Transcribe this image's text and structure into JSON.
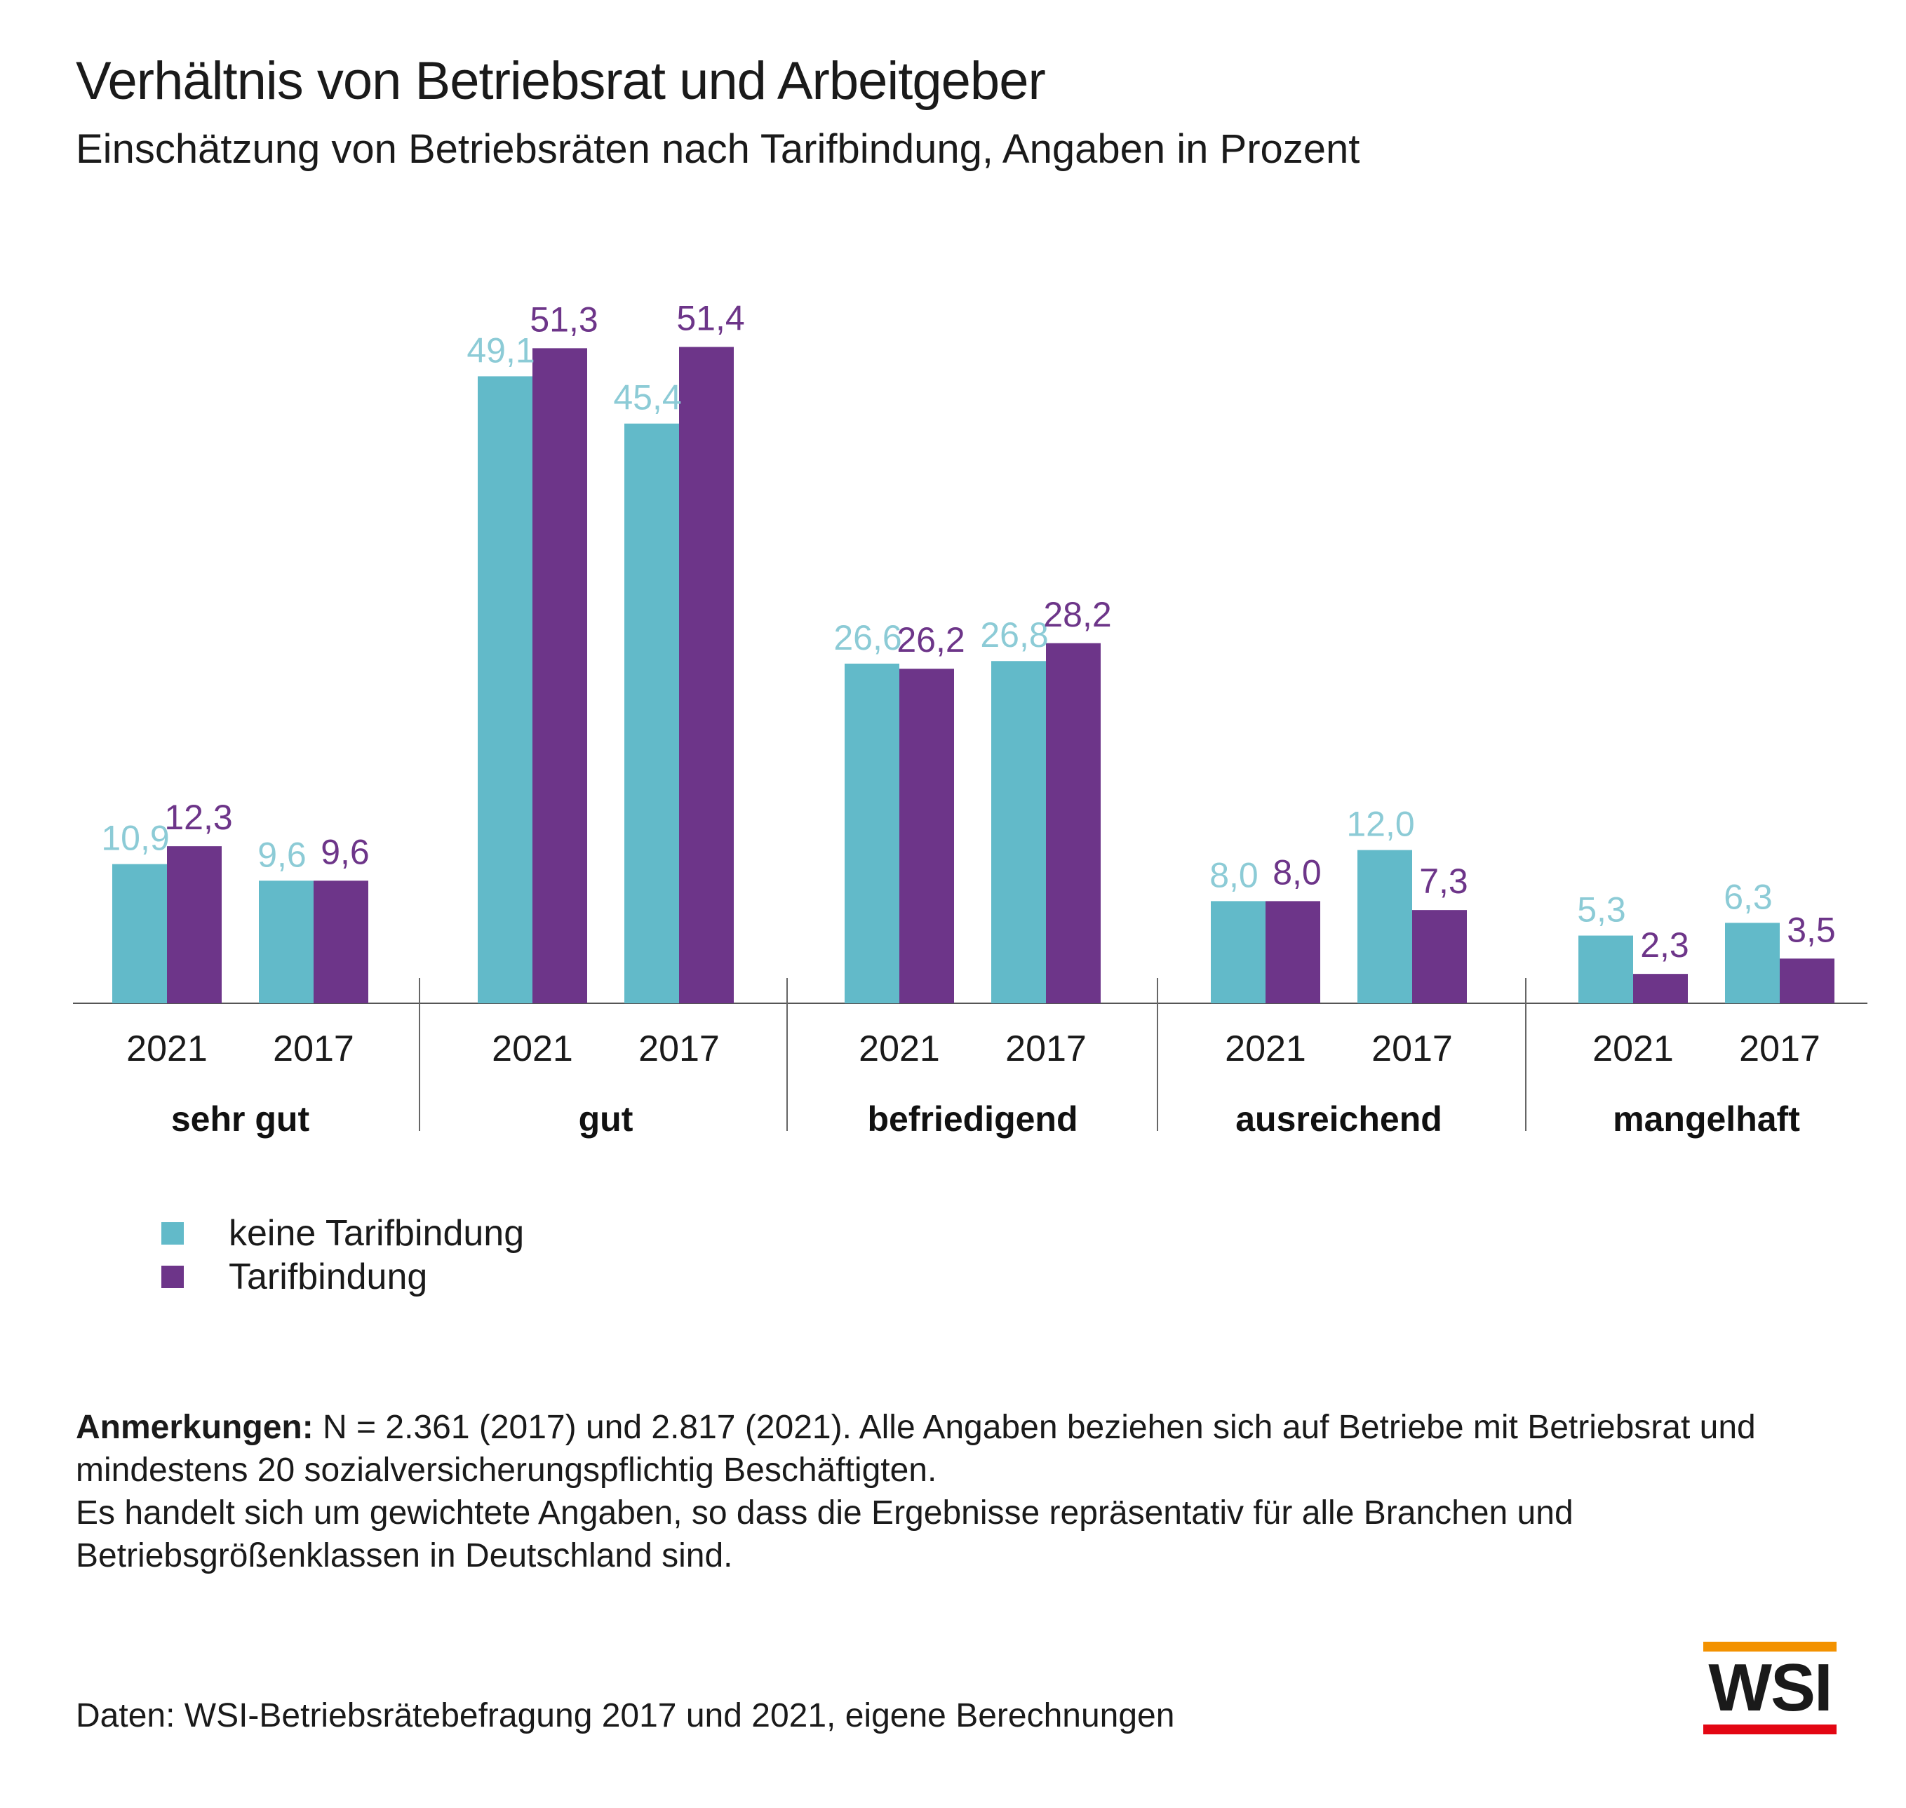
{
  "title": "Verhältnis von Betriebsrat und Arbeitgeber",
  "subtitle": "Einschätzung von Betriebsräten nach Tarifbindung, Angaben in Prozent",
  "colors": {
    "keine": "#62bac9",
    "tarif": "#6d3589",
    "keine_label": "#8ccbd6",
    "tarif_label": "#6d3589",
    "logo_orange": "#f39200",
    "logo_red": "#e30613"
  },
  "chart_data": {
    "type": "bar",
    "ylim": [
      0,
      55
    ],
    "legend_position": "bottom-left",
    "series": [
      {
        "name": "keine Tarifbindung",
        "key": "keine"
      },
      {
        "name": "Tarifbindung",
        "key": "tarif"
      }
    ],
    "groups": [
      {
        "label": "sehr gut",
        "years": [
          {
            "year": "2021",
            "keine": 10.9,
            "tarif": 12.3,
            "keine_label": "10,9",
            "tarif_label": "12,3"
          },
          {
            "year": "2017",
            "keine": 9.6,
            "tarif": 9.6,
            "keine_label": "9,6",
            "tarif_label": "9,6"
          }
        ]
      },
      {
        "label": "gut",
        "years": [
          {
            "year": "2021",
            "keine": 49.1,
            "tarif": 51.3,
            "keine_label": "49,1",
            "tarif_label": "51,3"
          },
          {
            "year": "2017",
            "keine": 45.4,
            "tarif": 51.4,
            "keine_label": "45,4",
            "tarif_label": "51,4"
          }
        ]
      },
      {
        "label": "befriedigend",
        "years": [
          {
            "year": "2021",
            "keine": 26.6,
            "tarif": 26.2,
            "keine_label": "26,6",
            "tarif_label": "26,2"
          },
          {
            "year": "2017",
            "keine": 26.8,
            "tarif": 28.2,
            "keine_label": "26,8",
            "tarif_label": "28,2"
          }
        ]
      },
      {
        "label": "ausreichend",
        "years": [
          {
            "year": "2021",
            "keine": 8.0,
            "tarif": 8.0,
            "keine_label": "8,0",
            "tarif_label": "8,0"
          },
          {
            "year": "2017",
            "keine": 12.0,
            "tarif": 7.3,
            "keine_label": "12,0",
            "tarif_label": "7,3"
          }
        ]
      },
      {
        "label": "mangelhaft",
        "years": [
          {
            "year": "2021",
            "keine": 5.3,
            "tarif": 2.3,
            "keine_label": "5,3",
            "tarif_label": "2,3"
          },
          {
            "year": "2017",
            "keine": 6.3,
            "tarif": 3.5,
            "keine_label": "6,3",
            "tarif_label": "3,5"
          }
        ]
      }
    ]
  },
  "legend": {
    "keine": "keine Tarifbindung",
    "tarif": "Tarifbindung"
  },
  "notes": {
    "label": "Anmerkungen:",
    "line1": " N = 2.361 (2017) und 2.817 (2021). Alle Angaben beziehen sich auf Betriebe mit Betriebsrat und mindestens 20 sozialversicherungspflichtig Beschäftigten.",
    "line2": "Es handelt sich um gewichtete Angaben, so dass die Ergebnisse repräsentativ für alle Branchen und Betriebsgrößenklassen in Deutschland sind."
  },
  "source": "Daten: WSI-Betriebsrätebefragung 2017 und 2021, eigene Berechnungen",
  "logo": {
    "text": "WSI"
  }
}
